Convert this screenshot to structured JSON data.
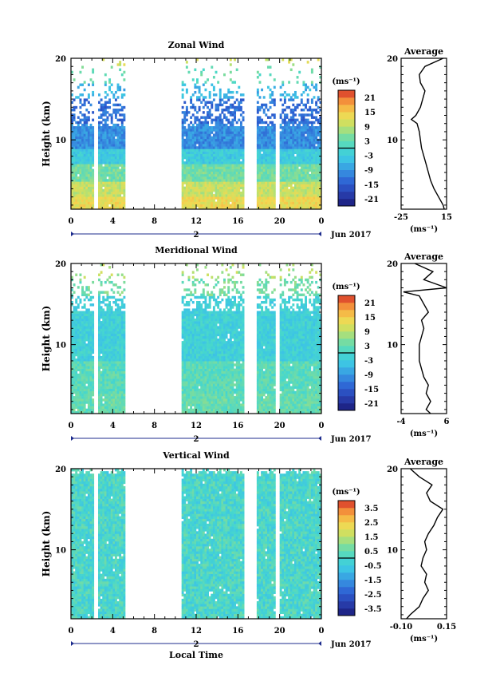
{
  "chart_data": [
    {
      "type": "heatmap",
      "title": "Zonal Wind",
      "ylabel": "Height (km)",
      "xticks": [
        "0",
        "4",
        "8",
        "12",
        "16",
        "20",
        "0"
      ],
      "yticks": [
        "10",
        "20"
      ],
      "xlim": [
        0,
        24
      ],
      "ylim": [
        1.5,
        20
      ],
      "date_label": "2",
      "month_label": "Jun 2017",
      "missing_hours": [
        [
          2.2,
          2.6
        ],
        [
          5.3,
          10.5
        ],
        [
          16.6,
          17.8
        ],
        [
          19.6,
          20.0
        ]
      ],
      "colorbar": {
        "unit": "(ms⁻¹)",
        "ticks": [
          "21",
          "15",
          "9",
          "3",
          "-3",
          "-9",
          "-15",
          "-21"
        ],
        "range": [
          -24,
          24
        ]
      },
      "profile": {
        "title": "Average",
        "unit": "(ms⁻¹)",
        "xticks": [
          "-25",
          "15"
        ],
        "yticks": [
          "10",
          "20"
        ],
        "xlim": [
          -25,
          15
        ],
        "heights_km": [
          1.5,
          2,
          3,
          4,
          5,
          6,
          7,
          8,
          9,
          10,
          11,
          12,
          12.5,
          13,
          14,
          15,
          16,
          17,
          18,
          19,
          20
        ],
        "values": [
          13,
          12,
          8,
          4,
          1,
          -1,
          -3,
          -5,
          -7,
          -8,
          -9,
          -11,
          -16,
          -12,
          -8,
          -6,
          -4,
          -8,
          -9,
          -4,
          12
        ]
      }
    },
    {
      "type": "heatmap",
      "title": "Meridional Wind",
      "ylabel": "Height (km)",
      "xticks": [
        "0",
        "4",
        "8",
        "12",
        "16",
        "20",
        "0"
      ],
      "yticks": [
        "10",
        "20"
      ],
      "xlim": [
        0,
        24
      ],
      "ylim": [
        1.5,
        20
      ],
      "date_label": "2",
      "month_label": "Jun 2017",
      "missing_hours": [
        [
          2.2,
          2.6
        ],
        [
          5.3,
          10.5
        ],
        [
          16.6,
          17.8
        ],
        [
          19.6,
          20.0
        ]
      ],
      "colorbar": {
        "unit": "(ms⁻¹)",
        "ticks": [
          "21",
          "15",
          "9",
          "3",
          "-3",
          "-9",
          "-15",
          "-21"
        ],
        "range": [
          -24,
          24
        ]
      },
      "profile": {
        "title": "Average",
        "unit": "(ms⁻¹)",
        "xticks": [
          "-4",
          "6"
        ],
        "yticks": [
          "10",
          "20"
        ],
        "xlim": [
          -4,
          6
        ],
        "heights_km": [
          1.5,
          2,
          3,
          4,
          5,
          6,
          7,
          8,
          9,
          10,
          11,
          12,
          13,
          14,
          15,
          16,
          16.5,
          17,
          18,
          19,
          20
        ],
        "values": [
          2.5,
          1.5,
          2.5,
          1.5,
          2,
          1.0,
          0.5,
          0,
          0,
          0,
          0.5,
          1.0,
          0.5,
          2.0,
          1.0,
          0,
          -3.5,
          6.0,
          1.0,
          3.0,
          -1.0
        ]
      }
    },
    {
      "type": "heatmap",
      "title": "Vertical Wind",
      "ylabel": "Height (km)",
      "xlabel": "Local Time",
      "xticks": [
        "0",
        "4",
        "8",
        "12",
        "16",
        "20",
        "0"
      ],
      "yticks": [
        "10",
        "20"
      ],
      "xlim": [
        0,
        24
      ],
      "ylim": [
        1.5,
        20
      ],
      "date_label": "2",
      "month_label": "Jun 2017",
      "missing_hours": [
        [
          2.2,
          2.6
        ],
        [
          5.3,
          10.5
        ],
        [
          16.6,
          17.8
        ],
        [
          19.6,
          20.0
        ]
      ],
      "colorbar": {
        "unit": "(ms⁻¹)",
        "ticks": [
          "3.5",
          "2.5",
          "1.5",
          "0.5",
          "-0.5",
          "-1.5",
          "-2.5",
          "-3.5"
        ],
        "range": [
          -4,
          4
        ]
      },
      "profile": {
        "title": "Average",
        "unit": "(ms⁻¹)",
        "xticks": [
          "-0.10",
          "0.15"
        ],
        "yticks": [
          "10",
          "20"
        ],
        "xlim": [
          -0.1,
          0.15
        ],
        "heights_km": [
          1.5,
          2,
          3,
          4,
          5,
          6,
          7,
          8,
          9,
          10,
          11,
          12,
          13,
          14,
          15,
          16,
          17,
          18,
          19,
          20
        ],
        "values": [
          -0.07,
          -0.05,
          0.0,
          0.02,
          0.05,
          0.03,
          0.04,
          0.01,
          0.02,
          0.04,
          0.03,
          0.05,
          0.08,
          0.1,
          0.13,
          0.06,
          0.04,
          0.07,
          0.0,
          -0.05
        ]
      }
    }
  ]
}
